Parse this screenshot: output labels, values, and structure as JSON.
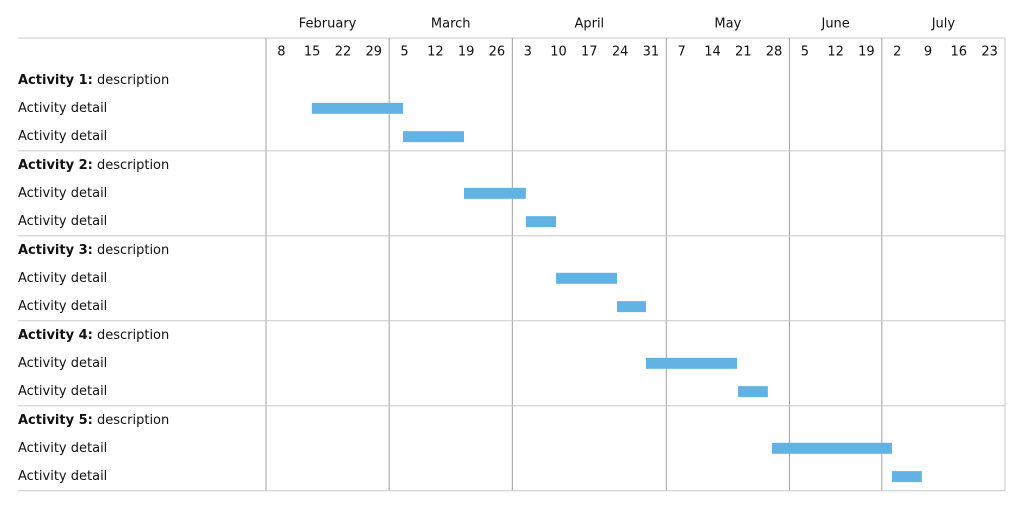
{
  "chart_data": {
    "type": "gantt",
    "months": [
      {
        "name": "February",
        "weeks": [
          "8",
          "15",
          "22",
          "29"
        ]
      },
      {
        "name": "March",
        "weeks": [
          "5",
          "12",
          "19",
          "26"
        ]
      },
      {
        "name": "April",
        "weeks": [
          "3",
          "10",
          "17",
          "24",
          "31"
        ]
      },
      {
        "name": "May",
        "weeks": [
          "7",
          "14",
          "21",
          "28"
        ]
      },
      {
        "name": "June",
        "weeks": [
          "5",
          "12",
          "19"
        ]
      },
      {
        "name": "July",
        "weeks": [
          "2",
          "9",
          "16",
          "23"
        ]
      }
    ],
    "color": "#62b3e4",
    "groups": [
      {
        "label": "Activity 1:",
        "description": "description",
        "tasks": [
          {
            "label": "Activity detail",
            "start": 1.49,
            "end": 4.45
          },
          {
            "label": "Activity detail",
            "start": 4.45,
            "end": 6.43
          }
        ]
      },
      {
        "label": "Activity 2:",
        "description": "description",
        "tasks": [
          {
            "label": "Activity detail",
            "start": 6.43,
            "end": 8.44
          },
          {
            "label": "Activity detail",
            "start": 8.44,
            "end": 9.42
          }
        ]
      },
      {
        "label": "Activity 3:",
        "description": "description",
        "tasks": [
          {
            "label": "Activity detail",
            "start": 9.42,
            "end": 11.4
          },
          {
            "label": "Activity detail",
            "start": 11.4,
            "end": 12.34
          }
        ]
      },
      {
        "label": "Activity 4:",
        "description": "description",
        "tasks": [
          {
            "label": "Activity detail",
            "start": 12.34,
            "end": 15.3
          },
          {
            "label": "Activity detail",
            "start": 15.33,
            "end": 16.3
          }
        ]
      },
      {
        "label": "Activity 5:",
        "description": "description",
        "tasks": [
          {
            "label": "Activity detail",
            "start": 16.43,
            "end": 20.33
          },
          {
            "label": "Activity detail",
            "start": 20.33,
            "end": 21.3
          }
        ]
      }
    ]
  }
}
